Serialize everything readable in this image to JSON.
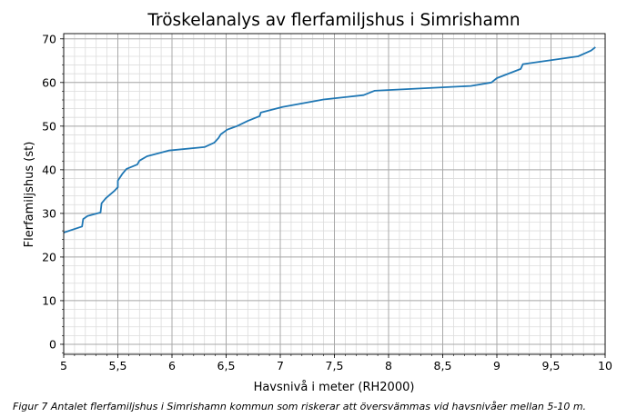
{
  "chart_data": {
    "type": "line",
    "title": "Tröskelanalys av flerfamiljshus i Simrishamn",
    "xlabel": "Havsnivå i meter (RH2000)",
    "ylabel": "Flerfamiljshus (st)",
    "xlim": [
      5,
      10
    ],
    "ylim": [
      -2.3,
      71.2
    ],
    "xticks": [
      5,
      5.5,
      6,
      6.5,
      7,
      7.5,
      8,
      8.5,
      9,
      9.5,
      10
    ],
    "xtick_labels": [
      "5",
      "5,5",
      "6",
      "6,5",
      "7",
      "7,5",
      "8",
      "8,5",
      "9",
      "9,5",
      "10"
    ],
    "yticks": [
      0,
      10,
      20,
      30,
      40,
      50,
      60,
      70
    ],
    "ytick_labels": [
      "0",
      "10",
      "20",
      "30",
      "40",
      "50",
      "60",
      "70"
    ],
    "grid": "major and minor",
    "series": [
      {
        "name": "Flerfamiljshus",
        "color": "#1f77b4",
        "x": [
          5.0,
          5.17,
          5.18,
          5.22,
          5.34,
          5.35,
          5.39,
          5.47,
          5.5,
          5.5,
          5.54,
          5.58,
          5.68,
          5.7,
          5.77,
          5.97,
          6.3,
          6.39,
          6.43,
          6.45,
          6.51,
          6.6,
          6.7,
          6.81,
          6.82,
          7.02,
          7.4,
          7.77,
          7.87,
          8.76,
          8.95,
          9.0,
          9.22,
          9.24,
          9.75,
          9.87,
          9.91
        ],
        "y": [
          25.6,
          27,
          28.7,
          29.4,
          30.2,
          32.3,
          33.5,
          35.2,
          36,
          37.5,
          39,
          40.2,
          41.2,
          42.1,
          43.1,
          44.4,
          45.2,
          46.2,
          47.3,
          48.1,
          49.2,
          50,
          51.2,
          52.3,
          53.1,
          54.4,
          56.1,
          57.1,
          58.1,
          59.2,
          60,
          61,
          63.1,
          64.2,
          66,
          67.3,
          68.1
        ]
      }
    ]
  },
  "caption": "Figur 7 Antalet flerfamiljshus i Simrishamn kommun som riskerar att översvämmas vid havsnivåer mellan 5-10 m."
}
